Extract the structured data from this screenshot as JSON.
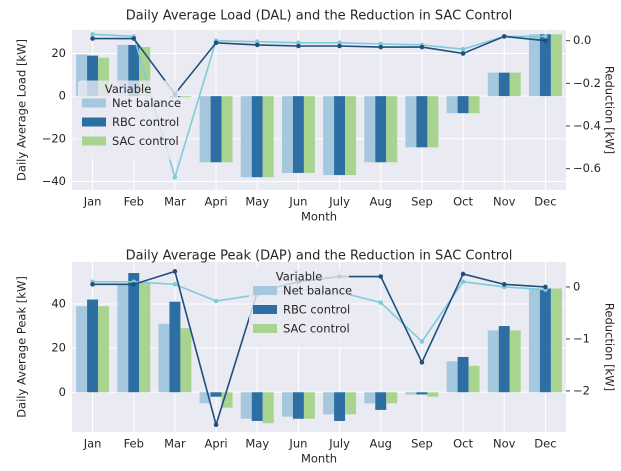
{
  "chart_data": [
    {
      "type": "bar",
      "title": "Daily Average Load (DAL) and the Reduction in SAC Control",
      "x_label": "Month",
      "y_label": "Daily Average Load [kW]",
      "y2_label": "Reduction [kW]",
      "categories": [
        "Jan",
        "Feb",
        "Mar",
        "Apri",
        "May",
        "Jun",
        "July",
        "Aug",
        "Sep",
        "Oct",
        "Nov",
        "Dec"
      ],
      "legend_title": "Variable",
      "legend": "center left",
      "grid": true,
      "ylim": [
        -44,
        31
      ],
      "yticks": [
        {
          "value": -40,
          "label": "−40"
        },
        {
          "value": -20,
          "label": "−20"
        },
        0,
        20
      ],
      "y2lim": [
        -0.7,
        0.05
      ],
      "y2ticks": [
        {
          "value": -0.6,
          "label": "−0.6"
        },
        {
          "value": -0.4,
          "label": "−0.4"
        },
        {
          "value": -0.2,
          "label": "−0.2"
        },
        {
          "value": 0,
          "label": "0.0"
        }
      ],
      "series": [
        {
          "name": "Net balance",
          "color": "#a6c8de",
          "values": [
            19.5,
            24,
            0,
            -31,
            -38,
            -36,
            -37,
            -31,
            -24,
            -8,
            11,
            29
          ]
        },
        {
          "name": "RBC control",
          "color": "#2d6ea3",
          "values": [
            19,
            24,
            -0.5,
            -31,
            -38,
            -36,
            -37,
            -31,
            -24,
            -8,
            11,
            29
          ]
        },
        {
          "name": "SAC control",
          "color": "#a9d490",
          "values": [
            18,
            23,
            -0.5,
            -31,
            -38,
            -36,
            -37,
            -31,
            -24,
            -8,
            11,
            29
          ]
        },
        {
          "type": "line",
          "axis": "y2",
          "color": "#7fcbd9",
          "values": [
            0.03,
            0.02,
            -0.64,
            0.0,
            -0.005,
            -0.01,
            -0.01,
            -0.015,
            -0.02,
            -0.04,
            0.02,
            0.02
          ]
        },
        {
          "type": "line",
          "axis": "y2",
          "color": "#1f4f7d",
          "values": [
            0.01,
            0.01,
            -0.25,
            -0.01,
            -0.02,
            -0.025,
            -0.025,
            -0.03,
            -0.03,
            -0.06,
            0.02,
            0.0
          ]
        }
      ]
    },
    {
      "type": "bar",
      "title": "Daily Average Peak (DAP) and the Reduction in SAC Control",
      "x_label": "Month",
      "y_label": "Daily Average Peak [kW]",
      "y2_label": "Reduction [kW]",
      "categories": [
        "Jan",
        "Feb",
        "Mar",
        "Apri",
        "May",
        "Jun",
        "July",
        "Aug",
        "Sep",
        "Oct",
        "Nov",
        "Dec"
      ],
      "legend_title": "Variable",
      "legend": "upper center",
      "grid": true,
      "ylim": [
        -18,
        59
      ],
      "yticks": [
        0,
        20,
        40
      ],
      "y2lim": [
        -2.79,
        0.48
      ],
      "y2ticks": [
        {
          "value": -2,
          "label": "−2"
        },
        {
          "value": -1,
          "label": "−1"
        },
        0
      ],
      "series": [
        {
          "name": "Net balance",
          "color": "#a6c8de",
          "values": [
            39,
            49,
            31,
            -5,
            -12,
            -11,
            -10,
            -5,
            -1,
            14,
            28,
            47
          ]
        },
        {
          "name": "RBC control",
          "color": "#2d6ea3",
          "values": [
            42,
            54,
            41,
            -2,
            -13,
            -12,
            -13,
            -8,
            -1,
            16,
            30,
            47
          ]
        },
        {
          "name": "SAC control",
          "color": "#a9d490",
          "values": [
            39,
            50,
            29,
            -7,
            -14,
            -12,
            -10,
            -5,
            -2,
            12,
            28,
            47
          ]
        },
        {
          "type": "line",
          "axis": "y2",
          "color": "#7fcbd9",
          "values": [
            0.1,
            0.1,
            0.05,
            -0.27,
            -0.15,
            -0.05,
            -0.1,
            -0.3,
            -1.05,
            0.1,
            0.0,
            -0.05
          ]
        },
        {
          "type": "line",
          "axis": "y2",
          "color": "#1f4f7d",
          "values": [
            0.05,
            0.05,
            0.3,
            -2.65,
            -0.1,
            0.1,
            0.2,
            0.2,
            -1.45,
            0.25,
            0.05,
            0.0
          ]
        }
      ]
    }
  ]
}
